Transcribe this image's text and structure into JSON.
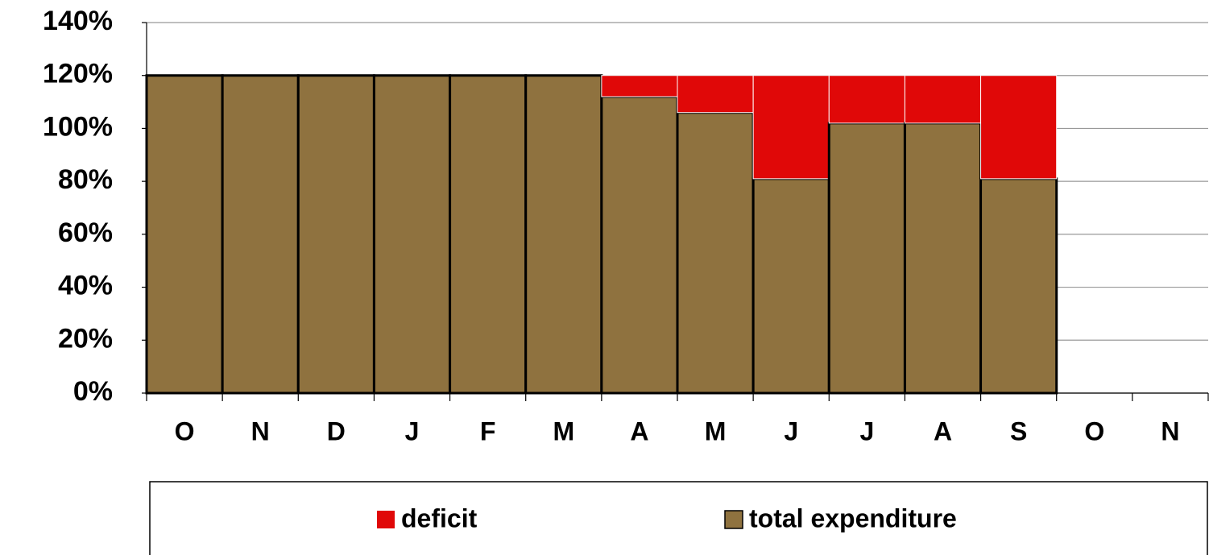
{
  "chart_data": {
    "type": "bar",
    "stacked": true,
    "categories": [
      "O",
      "N",
      "D",
      "J",
      "F",
      "M",
      "A",
      "M",
      "J",
      "J",
      "A",
      "S",
      "O",
      "N"
    ],
    "series": [
      {
        "name": "total expenditure",
        "color": "#8f723f",
        "values": [
          120,
          120,
          120,
          120,
          120,
          120,
          112,
          106,
          81,
          102,
          102,
          81,
          null,
          null
        ]
      },
      {
        "name": "deficit",
        "color": "#e00808",
        "values": [
          0,
          0,
          0,
          0,
          0,
          0,
          8,
          14,
          39,
          18,
          18,
          39,
          null,
          null
        ]
      }
    ],
    "ylim": [
      0,
      140
    ],
    "yticks": [
      {
        "value": 0,
        "label": "0%"
      },
      {
        "value": 20,
        "label": "20%"
      },
      {
        "value": 40,
        "label": "40%"
      },
      {
        "value": 60,
        "label": "60%"
      },
      {
        "value": 80,
        "label": "80%"
      },
      {
        "value": 100,
        "label": "100%"
      },
      {
        "value": 120,
        "label": "120%"
      },
      {
        "value": 140,
        "label": "140%"
      }
    ],
    "grid": true,
    "legend": "bottom"
  }
}
